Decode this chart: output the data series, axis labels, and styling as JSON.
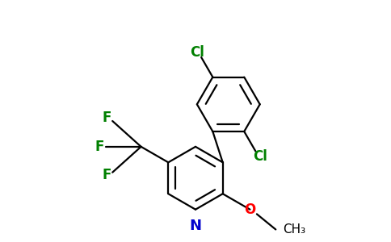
{
  "bg_color": "#ffffff",
  "bond_color": "#000000",
  "N_color": "#0000cd",
  "O_color": "#ff0000",
  "F_color": "#008000",
  "Cl_color": "#008000",
  "figsize": [
    4.84,
    3.0
  ],
  "dpi": 100,
  "bond_lw": 1.6,
  "font_size": 12,
  "ring_r": 0.55,
  "xlim": [
    -2.5,
    2.5
  ],
  "ylim": [
    -1.6,
    2.6
  ]
}
